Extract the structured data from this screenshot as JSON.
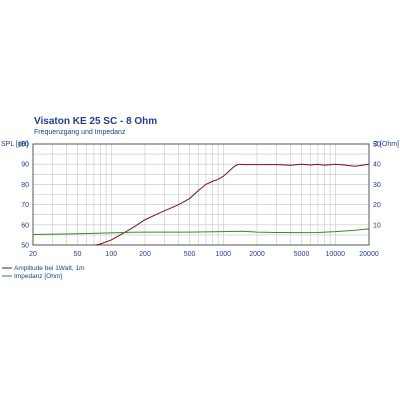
{
  "chart_data": {
    "type": "line",
    "title": "Visaton KE 25 SC - 8 Ohm",
    "subtitle": "Frequenzgang und Impedanz",
    "ylabel_left": "SPL [dB]",
    "ylabel_right": "Z [Ohm]",
    "x_scale": "log",
    "xlim": [
      20,
      20000
    ],
    "ylim_left": [
      50,
      100
    ],
    "ylim_right": [
      0,
      50
    ],
    "x_tick_labels": [
      "20",
      "50",
      "100",
      "200",
      "500",
      "1000",
      "2000",
      "5000",
      "10000",
      "20000"
    ],
    "y_left_tick_labels": [
      "100",
      "90",
      "80",
      "70",
      "60",
      "50"
    ],
    "y_right_tick_labels": [
      "50",
      "40",
      "30",
      "20",
      "10"
    ],
    "grid": true,
    "legend_position": "bottom-left",
    "series": [
      {
        "name": "Amplitude bei 1Watt, 1m",
        "axis": "left",
        "color": "#7a1515",
        "x": [
          20,
          40,
          60,
          80,
          100,
          120,
          150,
          200,
          250,
          300,
          400,
          500,
          600,
          700,
          800,
          900,
          1000,
          1100,
          1200,
          1300,
          1400,
          1500,
          2000,
          3000,
          4000,
          5000,
          6000,
          7000,
          8000,
          10000,
          12000,
          15000,
          18000,
          20000
        ],
        "y": [
          45,
          47,
          49,
          50.5,
          52.5,
          55,
          58,
          62.5,
          65,
          67,
          70,
          73,
          77,
          80,
          81.5,
          82.5,
          84,
          86,
          88,
          89.5,
          90,
          89.8,
          89.8,
          89.8,
          89.5,
          90,
          89.6,
          89.9,
          89.5,
          90,
          89.6,
          89,
          89.6,
          90
        ]
      },
      {
        "name": "Impedanz [Ohm]",
        "axis": "right",
        "color": "#2e8b2e",
        "x": [
          20,
          50,
          100,
          150,
          200,
          300,
          500,
          700,
          1000,
          1500,
          2000,
          3000,
          5000,
          7000,
          10000,
          15000,
          20000
        ],
        "y": [
          5.2,
          5.6,
          6.0,
          6.3,
          6.4,
          6.4,
          6.4,
          6.5,
          6.6,
          6.8,
          6.4,
          6.2,
          6.1,
          6.2,
          6.6,
          7.3,
          8.0
        ]
      }
    ]
  }
}
